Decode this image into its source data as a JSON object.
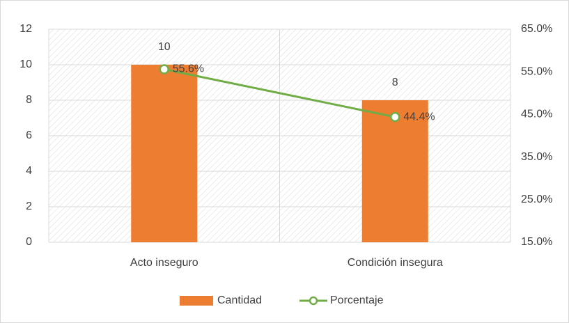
{
  "chart_data": {
    "type": "bar",
    "categories": [
      "Acto inseguro",
      "Condición insegura"
    ],
    "series": [
      {
        "name": "Cantidad",
        "color": "#ed7d31",
        "values": [
          10,
          8
        ]
      },
      {
        "name": "Porcentaje",
        "color": "#70ad47",
        "type": "line",
        "axis": "y2",
        "values": [
          55.6,
          44.4
        ],
        "value_labels": [
          "55.6%",
          "44.4%"
        ]
      }
    ],
    "ylim": [
      0,
      12
    ],
    "yticks": [
      0,
      2,
      4,
      6,
      8,
      10,
      12
    ],
    "y2lim": [
      15,
      65
    ],
    "y2ticks": [
      {
        "value": 15,
        "label": "15.0%"
      },
      {
        "value": 25,
        "label": "25.0%"
      },
      {
        "value": 35,
        "label": "35.0%"
      },
      {
        "value": 45,
        "label": "45.0%"
      },
      {
        "value": 55,
        "label": "55.0%"
      },
      {
        "value": 65,
        "label": "65.0%"
      }
    ],
    "grid": true,
    "legend": "bottom"
  }
}
